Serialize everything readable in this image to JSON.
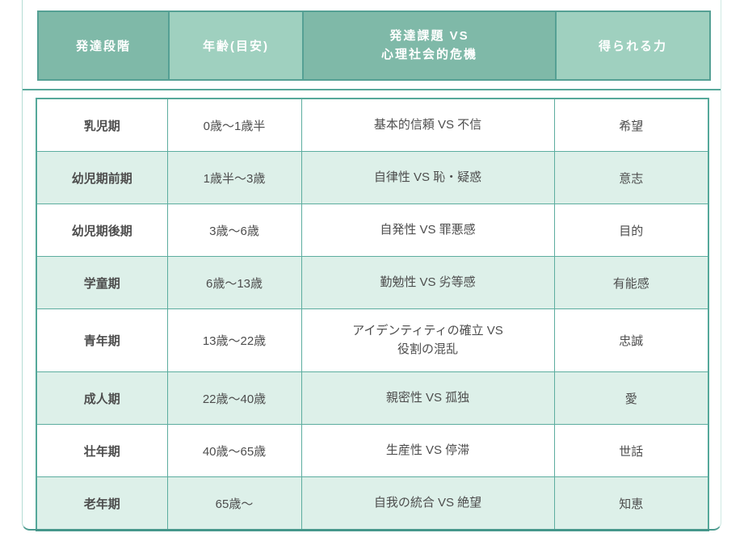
{
  "colors": {
    "header_cell_dark": "#7fb9a8",
    "header_cell_light": "#9fd0bf",
    "header_border": "#55a094",
    "header_text": "#ffffff",
    "row_alt_background": "#ddf0e9",
    "table_border": "#5cad9f",
    "body_text": "#4d4d4d",
    "panel_side_border": "#b4dcd4",
    "panel_bottom_border": "#4c9b8f"
  },
  "header": {
    "col1": "発達段階",
    "col2": "年齢(目安)",
    "col3_line1": "発達課題 VS",
    "col3_line2": "心理社会的危機",
    "col4": "得られる力"
  },
  "rows": [
    {
      "stage": "乳児期",
      "age": "0歳〜1歳半",
      "task": "基本的信頼 VS 不信",
      "power": "希望"
    },
    {
      "stage": "幼児期前期",
      "age": "1歳半〜3歳",
      "task": "自律性 VS 恥・疑惑",
      "power": "意志"
    },
    {
      "stage": "幼児期後期",
      "age": "3歳〜6歳",
      "task": "自発性 VS 罪悪感",
      "power": "目的"
    },
    {
      "stage": "学童期",
      "age": "6歳〜13歳",
      "task": "勤勉性 VS 劣等感",
      "power": "有能感"
    },
    {
      "stage": "青年期",
      "age": "13歳〜22歳",
      "task": "アイデンティティの確立 VS",
      "task2": "役割の混乱",
      "power": "忠誠"
    },
    {
      "stage": "成人期",
      "age": "22歳〜40歳",
      "task": "親密性 VS 孤独",
      "power": "愛"
    },
    {
      "stage": "壮年期",
      "age": "40歳〜65歳",
      "task": "生産性 VS 停滞",
      "power": "世話"
    },
    {
      "stage": "老年期",
      "age": "65歳〜",
      "task": "自我の統合 VS 絶望",
      "power": "知恵"
    }
  ],
  "chart_data": {
    "type": "table",
    "title": "",
    "columns": [
      "発達段階",
      "年齢(目安)",
      "発達課題 VS 心理社会的危機",
      "得られる力"
    ],
    "rows": [
      [
        "乳児期",
        "0歳〜1歳半",
        "基本的信頼 VS 不信",
        "希望"
      ],
      [
        "幼児期前期",
        "1歳半〜3歳",
        "自律性 VS 恥・疑惑",
        "意志"
      ],
      [
        "幼児期後期",
        "3歳〜6歳",
        "自発性 VS 罪悪感",
        "目的"
      ],
      [
        "学童期",
        "6歳〜13歳",
        "勤勉性 VS 劣等感",
        "有能感"
      ],
      [
        "青年期",
        "13歳〜22歳",
        "アイデンティティの確立 VS 役割の混乱",
        "忠誠"
      ],
      [
        "成人期",
        "22歳〜40歳",
        "親密性 VS 孤独",
        "愛"
      ],
      [
        "壮年期",
        "40歳〜65歳",
        "生産性 VS 停滞",
        "世話"
      ],
      [
        "老年期",
        "65歳〜",
        "自我の統合 VS 絶望",
        "知恵"
      ]
    ],
    "layout_hints": {
      "header_row": true,
      "alternating_row_colors": [
        "#ffffff",
        "#ddf0e9"
      ],
      "header_cell_colors_alternating": [
        "#7fb9a8",
        "#9fd0bf"
      ]
    }
  }
}
